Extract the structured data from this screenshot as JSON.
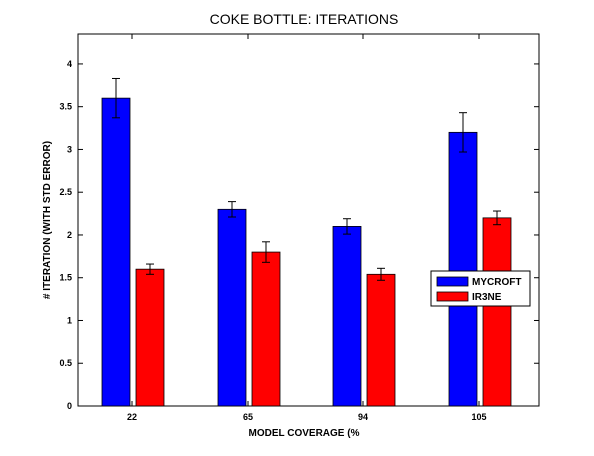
{
  "chart_data": {
    "type": "bar",
    "title": "COKE BOTTLE: ITERATIONS",
    "xlabel": "MODEL COVERAGE (%",
    "ylabel": "# ITERATION (WITH STD ERROR)",
    "categories": [
      "22",
      "65",
      "94",
      "105"
    ],
    "series": [
      {
        "name": "MYCROFT",
        "color": "#0000ff",
        "values": [
          3.6,
          2.3,
          2.1,
          3.2
        ],
        "errors": [
          0.23,
          0.09,
          0.09,
          0.23
        ]
      },
      {
        "name": "IR3NE",
        "color": "#ff0000",
        "values": [
          1.6,
          1.8,
          1.54,
          2.2
        ],
        "errors": [
          0.06,
          0.12,
          0.07,
          0.08
        ]
      }
    ],
    "ylim": [
      0,
      4.35
    ],
    "yticks": [
      0,
      0.5,
      1,
      1.5,
      2,
      2.5,
      3,
      3.5,
      4
    ],
    "ytick_labels": [
      "0",
      "0.5",
      "1",
      "1.5",
      "2",
      "2.5",
      "3",
      "3.5",
      "4"
    ],
    "grid": false,
    "legend_position": "right"
  }
}
